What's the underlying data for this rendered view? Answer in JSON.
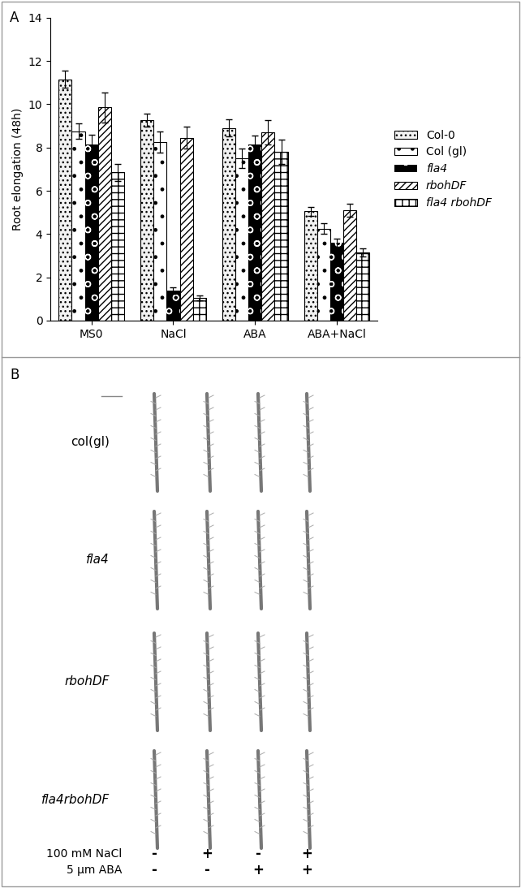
{
  "chart_data": {
    "type": "bar",
    "title": "A",
    "categories": [
      "MS0",
      "NaCl",
      "ABA",
      "ABA+NaCl"
    ],
    "y_label": "Root elongation (48h)",
    "ylim": [
      0,
      14
    ],
    "yticks": [
      0,
      2,
      4,
      6,
      8,
      10,
      12,
      14
    ],
    "legend": "right",
    "series": [
      {
        "name": "Col-0",
        "color": "#f2f2f2",
        "values": [
          11.15,
          9.25,
          8.9,
          5.05
        ],
        "errors": [
          0.4,
          0.3,
          0.4,
          0.2
        ]
      },
      {
        "name": "Col (gl)",
        "color": "#ffffff",
        "values": [
          8.75,
          8.25,
          7.5,
          4.25
        ],
        "errors": [
          0.35,
          0.5,
          0.45,
          0.25
        ]
      },
      {
        "name": "fla4",
        "color": "#000000",
        "values": [
          8.15,
          1.4,
          8.15,
          3.6
        ],
        "errors": [
          0.45,
          0.15,
          0.4,
          0.2
        ]
      },
      {
        "name": "rbohDF",
        "color": "#ffffff",
        "values": [
          9.85,
          8.45,
          8.7,
          5.1
        ],
        "errors": [
          0.7,
          0.5,
          0.55,
          0.3
        ]
      },
      {
        "name": "fla4 rbohDF",
        "color": "#ffffff",
        "values": [
          6.85,
          1.05,
          7.8,
          3.15
        ],
        "errors": [
          0.4,
          0.1,
          0.55,
          0.2
        ]
      }
    ]
  },
  "panel_b": {
    "label": "B",
    "rows": [
      "col(gl)",
      "fla4",
      "rbohDF",
      "fla4rbohDF"
    ],
    "treatments": [
      {
        "name": "100 mM NaCl",
        "signs": [
          "-",
          "+",
          "-",
          "+"
        ]
      },
      {
        "name": "5 µm ABA",
        "signs": [
          "-",
          "-",
          "+",
          "+"
        ]
      }
    ]
  }
}
